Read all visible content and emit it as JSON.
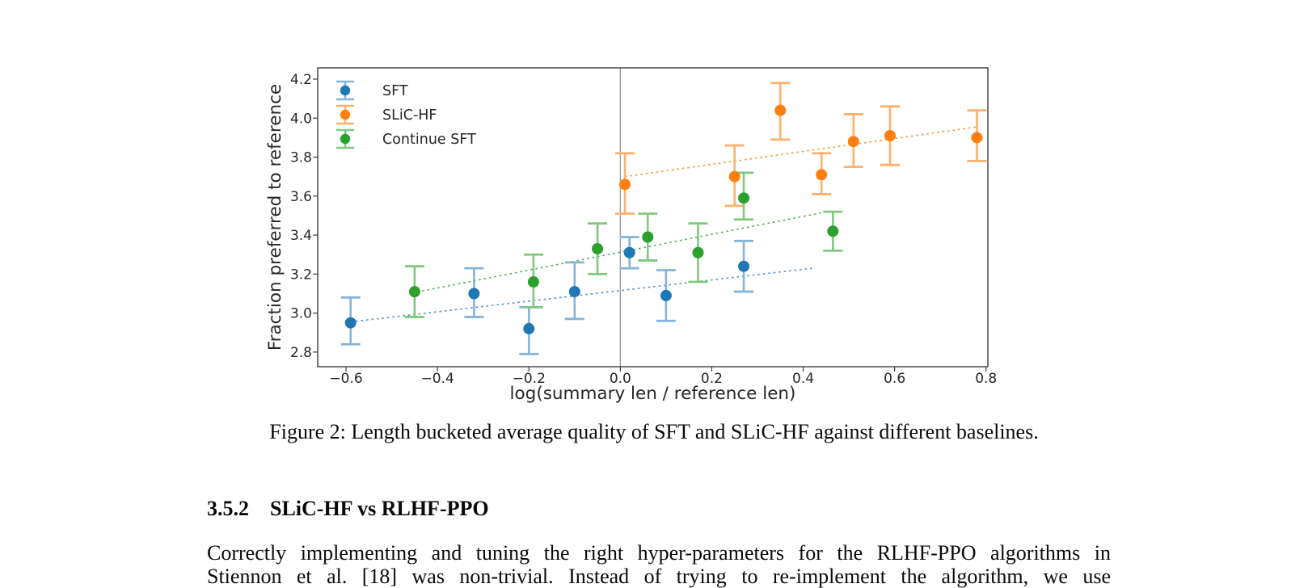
{
  "paper": {
    "caption": "Figure 2: Length bucketed average quality of SFT and SLiC-HF against different baselines.",
    "section_number": "3.5.2",
    "section_title": "SLiC-HF vs RLHF-PPO",
    "body_line1": "Correctly implementing and tuning the right hyper-parameters for the RLHF-PPO algorithms in",
    "body_line2": "Stiennon et al. [18] was non-trivial. Instead of trying to re-implement the algorithm, we use"
  },
  "chart_data": {
    "type": "scatter",
    "title": "",
    "xlabel": "log(summary len / reference len)",
    "ylabel": "Fraction preferred to reference",
    "xlim": [
      -0.662,
      0.804
    ],
    "ylim": [
      2.725,
      4.258
    ],
    "grid": false,
    "legend_position": "upper-left",
    "xticks": [
      {
        "v": -0.6,
        "label": "−0.6"
      },
      {
        "v": -0.4,
        "label": "−0.4"
      },
      {
        "v": -0.2,
        "label": "−0.2"
      },
      {
        "v": 0.0,
        "label": "0.0"
      },
      {
        "v": 0.2,
        "label": "0.2"
      },
      {
        "v": 0.4,
        "label": "0.4"
      },
      {
        "v": 0.6,
        "label": "0.6"
      },
      {
        "v": 0.8,
        "label": "0.8"
      }
    ],
    "yticks": [
      {
        "v": 2.8,
        "label": "2.8"
      },
      {
        "v": 3.0,
        "label": "3.0"
      },
      {
        "v": 3.2,
        "label": "3.2"
      },
      {
        "v": 3.4,
        "label": "3.4"
      },
      {
        "v": 3.6,
        "label": "3.6"
      },
      {
        "v": 3.8,
        "label": "3.8"
      },
      {
        "v": 4.0,
        "label": "4.0"
      },
      {
        "v": 4.2,
        "label": "4.2"
      }
    ],
    "vline": {
      "x": 0.0,
      "color": "#9a9a9a"
    },
    "series": [
      {
        "name": "SFT",
        "color": "#1f77b4",
        "error_color": "#85b3d9",
        "trend_color": "#5593c8",
        "points": [
          {
            "x": -0.59,
            "y": 2.95,
            "lo": 2.84,
            "hi": 3.08
          },
          {
            "x": -0.32,
            "y": 3.1,
            "lo": 2.98,
            "hi": 3.23
          },
          {
            "x": -0.2,
            "y": 2.92,
            "lo": 2.79,
            "hi": 3.03
          },
          {
            "x": -0.1,
            "y": 3.11,
            "lo": 2.97,
            "hi": 3.26
          },
          {
            "x": 0.02,
            "y": 3.31,
            "lo": 3.23,
            "hi": 3.39
          },
          {
            "x": 0.1,
            "y": 3.09,
            "lo": 2.96,
            "hi": 3.22
          },
          {
            "x": 0.27,
            "y": 3.24,
            "lo": 3.11,
            "hi": 3.37
          }
        ],
        "trend": {
          "x0": -0.59,
          "y0": 2.955,
          "x1": 0.42,
          "y1": 3.23
        }
      },
      {
        "name": "SLiC-HF",
        "color": "#ff7f0e",
        "error_color": "#ffb06e",
        "trend_color": "#ff9636",
        "points": [
          {
            "x": 0.01,
            "y": 3.66,
            "lo": 3.51,
            "hi": 3.82
          },
          {
            "x": 0.25,
            "y": 3.7,
            "lo": 3.55,
            "hi": 3.86
          },
          {
            "x": 0.35,
            "y": 4.04,
            "lo": 3.89,
            "hi": 4.18
          },
          {
            "x": 0.44,
            "y": 3.71,
            "lo": 3.61,
            "hi": 3.82
          },
          {
            "x": 0.51,
            "y": 3.88,
            "lo": 3.75,
            "hi": 4.02
          },
          {
            "x": 0.59,
            "y": 3.91,
            "lo": 3.76,
            "hi": 4.06
          },
          {
            "x": 0.78,
            "y": 3.9,
            "lo": 3.78,
            "hi": 4.04
          }
        ],
        "trend": {
          "x0": 0.01,
          "y0": 3.7,
          "x1": 0.78,
          "y1": 3.955
        }
      },
      {
        "name": "Continue SFT",
        "color": "#2ca02c",
        "error_color": "#7fc97f",
        "trend_color": "#54b054",
        "points": [
          {
            "x": -0.45,
            "y": 3.11,
            "lo": 2.98,
            "hi": 3.24
          },
          {
            "x": -0.19,
            "y": 3.16,
            "lo": 3.03,
            "hi": 3.3
          },
          {
            "x": -0.05,
            "y": 3.33,
            "lo": 3.2,
            "hi": 3.46
          },
          {
            "x": 0.06,
            "y": 3.39,
            "lo": 3.27,
            "hi": 3.51
          },
          {
            "x": 0.17,
            "y": 3.31,
            "lo": 3.16,
            "hi": 3.46
          },
          {
            "x": 0.27,
            "y": 3.59,
            "lo": 3.48,
            "hi": 3.72
          },
          {
            "x": 0.465,
            "y": 3.42,
            "lo": 3.32,
            "hi": 3.52
          }
        ],
        "trend": {
          "x0": -0.445,
          "y0": 3.108,
          "x1": 0.459,
          "y1": 3.523
        }
      }
    ]
  }
}
